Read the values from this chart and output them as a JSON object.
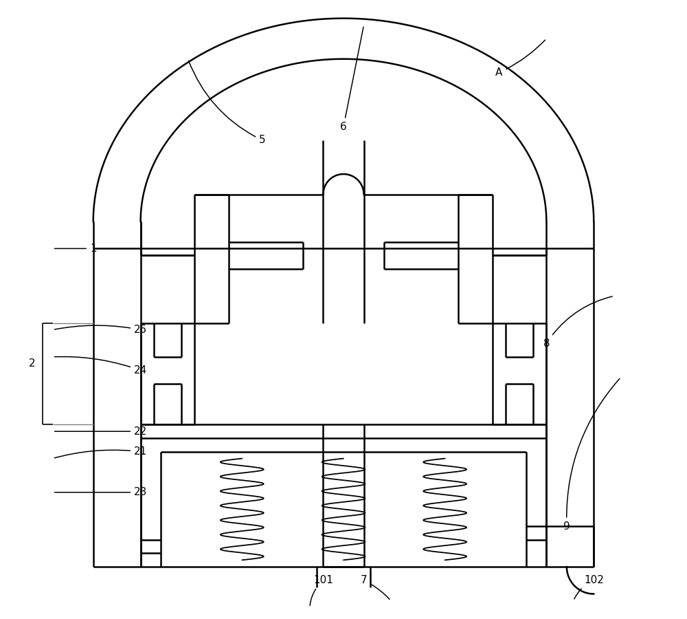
{
  "bg_color": "#ffffff",
  "line_color": "#000000",
  "lw_main": 1.8,
  "lw_thin": 1.2,
  "fig_width": 10.0,
  "fig_height": 9.0
}
